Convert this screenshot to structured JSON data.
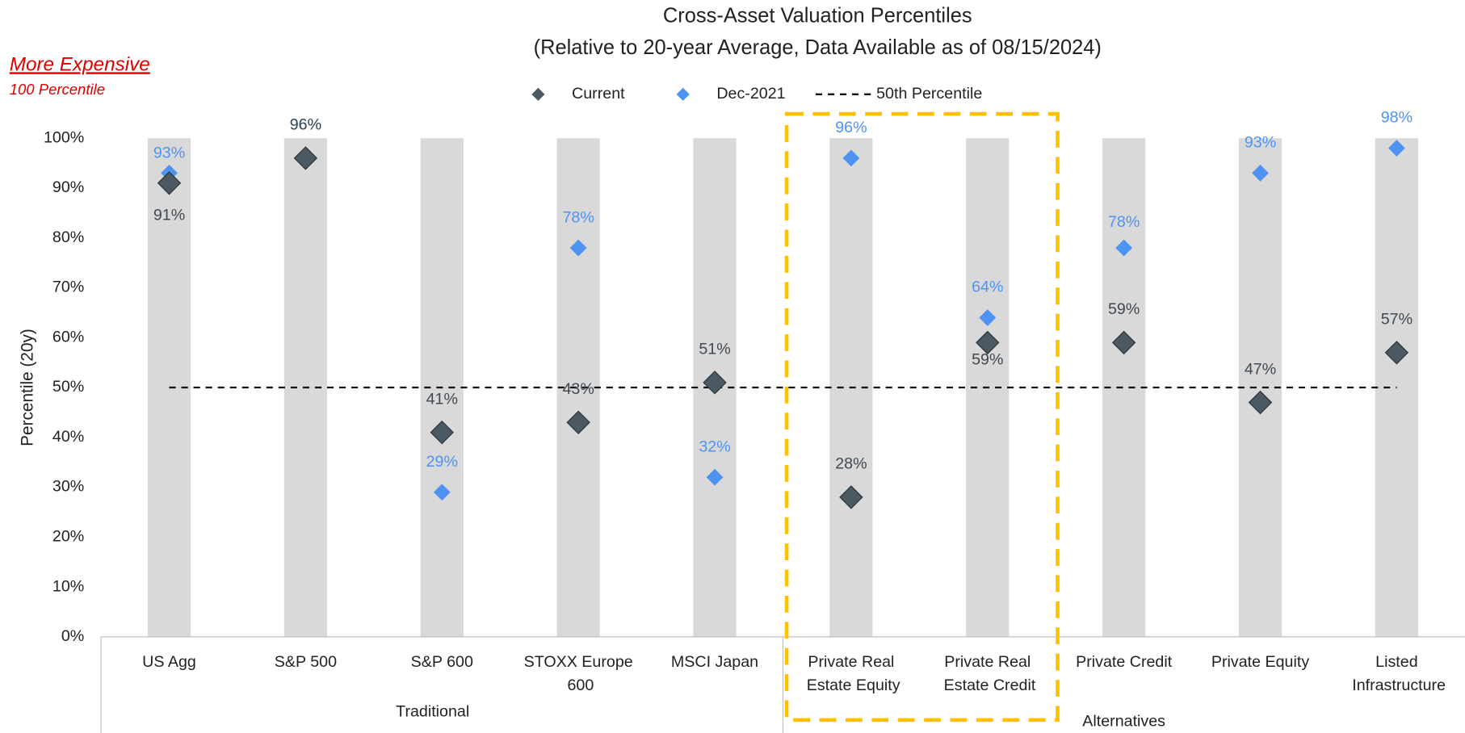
{
  "chart_data": {
    "type": "scatter",
    "title": "Cross-Asset Valuation Percentiles",
    "subtitle": "(Relative to 20-year Average, Data Available as of 08/15/2024)",
    "annotations": [
      "More Expensive",
      "100 Percentile"
    ],
    "y_label": "Percentile (20y)",
    "groups": [
      {
        "label": "Traditional",
        "categories": [
          "US Agg",
          "S&P 500",
          "S&P 600",
          "STOXX Europe 600",
          "MSCI Japan"
        ]
      },
      {
        "label": "Alternatives",
        "categories": [
          "Private Real Estate Equity",
          "Private Real Estate Credit",
          "Private Credit",
          "Private Equity",
          "Listed Infrastructure"
        ]
      }
    ],
    "series": [
      {
        "name": "Current",
        "color": "#4b5963",
        "label_color": "#3f4a52",
        "values": [
          91,
          96,
          41,
          43,
          51,
          28,
          59,
          59,
          47,
          57
        ],
        "value_labels": [
          "91%",
          "96%",
          "41%",
          "43%",
          "51%",
          "28%",
          "59%",
          "59%",
          "47%",
          "57%"
        ]
      },
      {
        "name": "Dec-2021",
        "color": "#4f93f2",
        "label_color": "#4f93f2",
        "values": [
          93,
          96,
          29,
          78,
          32,
          96,
          64,
          78,
          93,
          98
        ],
        "value_labels": [
          "93%",
          "96%",
          "29%",
          "78%",
          "32%",
          "96%",
          "64%",
          "78%",
          "93%",
          "98%"
        ]
      }
    ],
    "reference_line": {
      "name": "50th Percentile",
      "value": 50
    },
    "ylim": [
      0,
      100
    ],
    "yticks": [
      {
        "value": 0,
        "label": "0%"
      },
      {
        "value": 10,
        "label": "10%"
      },
      {
        "value": 20,
        "label": "20%"
      },
      {
        "value": 30,
        "label": "30%"
      },
      {
        "value": 40,
        "label": "40%"
      },
      {
        "value": 50,
        "label": "50%"
      },
      {
        "value": 60,
        "label": "60%"
      },
      {
        "value": 70,
        "label": "70%"
      },
      {
        "value": 80,
        "label": "80%"
      },
      {
        "value": 90,
        "label": "90%"
      },
      {
        "value": 100,
        "label": "100%"
      }
    ]
  }
}
